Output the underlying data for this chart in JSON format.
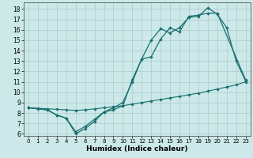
{
  "xlabel": "Humidex (Indice chaleur)",
  "bg_color": "#cce8e8",
  "line_color": "#1a7070",
  "grid_color": "#aacccc",
  "xlim": [
    -0.5,
    23.5
  ],
  "ylim": [
    5.8,
    18.6
  ],
  "xticks": [
    0,
    1,
    2,
    3,
    4,
    5,
    6,
    7,
    8,
    9,
    10,
    11,
    12,
    13,
    14,
    15,
    16,
    17,
    18,
    19,
    20,
    21,
    22,
    23
  ],
  "yticks": [
    6,
    7,
    8,
    9,
    10,
    11,
    12,
    13,
    14,
    15,
    16,
    17,
    18
  ],
  "line1_x": [
    0,
    1,
    2,
    3,
    4,
    5,
    6,
    7,
    8,
    9,
    10,
    11,
    12,
    13,
    14,
    15,
    16,
    17,
    18,
    19,
    20,
    21,
    22,
    23
  ],
  "line1_y": [
    8.5,
    8.4,
    8.3,
    7.8,
    7.5,
    6.0,
    6.5,
    7.2,
    8.1,
    8.5,
    9.0,
    11.0,
    13.2,
    15.0,
    16.1,
    15.7,
    16.2,
    17.2,
    17.3,
    18.1,
    17.5,
    16.2,
    13.0,
    11.1
  ],
  "line2_x": [
    0,
    2,
    3,
    4,
    5,
    6,
    7,
    8,
    9,
    10,
    11,
    12,
    13,
    14,
    15,
    16,
    17,
    18,
    19,
    20,
    23
  ],
  "line2_y": [
    8.5,
    8.3,
    7.8,
    7.5,
    6.2,
    6.7,
    7.4,
    8.1,
    8.3,
    8.7,
    11.2,
    13.2,
    13.4,
    15.1,
    16.2,
    15.8,
    17.3,
    17.4,
    17.6,
    17.6,
    11.2
  ],
  "line3_x": [
    0,
    1,
    2,
    3,
    4,
    5,
    6,
    7,
    8,
    9,
    10,
    11,
    12,
    13,
    14,
    15,
    16,
    17,
    18,
    19,
    20,
    21,
    22,
    23
  ],
  "line3_y": [
    8.5,
    8.45,
    8.4,
    8.35,
    8.3,
    8.25,
    8.3,
    8.4,
    8.5,
    8.6,
    8.7,
    8.85,
    9.0,
    9.15,
    9.3,
    9.45,
    9.6,
    9.75,
    9.9,
    10.1,
    10.3,
    10.5,
    10.7,
    11.0
  ]
}
